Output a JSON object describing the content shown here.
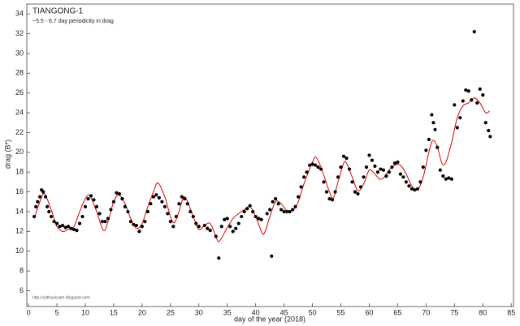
{
  "chart_data": {
    "type": "scatter",
    "title": "TIANGONG-1",
    "subtitle": "~5.5 - 6.7 day periodicity in drag",
    "note": "http://sattrackcam.blogspot.com",
    "xlabel": "day of the year (2018)",
    "ylabel": "drag (B*)",
    "xlim": [
      -0.3,
      85.4
    ],
    "ylim": [
      4.4,
      35
    ],
    "xticks": [
      0,
      5,
      10,
      15,
      20,
      25,
      30,
      35,
      40,
      45,
      50,
      55,
      60,
      65,
      70,
      75,
      80,
      85
    ],
    "yticks": [
      6,
      8,
      10,
      12,
      14,
      16,
      18,
      20,
      22,
      24,
      26,
      28,
      30,
      32,
      34
    ],
    "series": [
      {
        "color": "#000000",
        "x": [
          1,
          1.3,
          1.6,
          2,
          2.3,
          2.6,
          3,
          3.3,
          3.6,
          4,
          4.5,
          5,
          5.5,
          6,
          6.5,
          7,
          7.5,
          8,
          8.5,
          9,
          9.5,
          10,
          10.5,
          11,
          11.5,
          12,
          12.5,
          13,
          13.5,
          14,
          14.5,
          15,
          15.5,
          16,
          16.5,
          17,
          17.5,
          18,
          18.5,
          19,
          19.5,
          20,
          20.5,
          21,
          21.5,
          22,
          22.5,
          23,
          23.5,
          24,
          24.5,
          25,
          25.5,
          26,
          26.5,
          27,
          27.5,
          28,
          28.5,
          29,
          29.5,
          30,
          31,
          31.5,
          32,
          33,
          33.5,
          34,
          34.5,
          35,
          35.5,
          36,
          36.5,
          37,
          37.5,
          38,
          38.5,
          39,
          39.5,
          40,
          40.5,
          41,
          42,
          42.5,
          42.8,
          43,
          43.5,
          44,
          44.5,
          45,
          45.5,
          46,
          46.5,
          47,
          47.5,
          48,
          48.5,
          49,
          49.5,
          50,
          50.5,
          51,
          51.5,
          52,
          52.5,
          53,
          53.5,
          54,
          54.5,
          55,
          55.5,
          56,
          56.5,
          57,
          57.5,
          58,
          58.5,
          59,
          59.5,
          60,
          60.5,
          61,
          61.5,
          62,
          62.5,
          63,
          63.5,
          64,
          64.5,
          65,
          65.5,
          66,
          66.5,
          67,
          67.5,
          68,
          68.5,
          69,
          69.5,
          70,
          70.5,
          71,
          71.3,
          71.6,
          72,
          72.5,
          73,
          73.5,
          74,
          74.5,
          75,
          75.5,
          76,
          76.5,
          77,
          77.5,
          78,
          78.5,
          79,
          79.5,
          80,
          80.5,
          81,
          81.3
        ],
        "values": [
          13.5,
          14.5,
          15,
          15.5,
          16.2,
          16,
          15.5,
          14.5,
          14,
          13.5,
          13,
          12.8,
          12.5,
          12.6,
          12.4,
          12.5,
          12.3,
          12.2,
          12.1,
          12.8,
          13.5,
          14.5,
          15.3,
          15.6,
          15.2,
          14.5,
          13.8,
          13,
          13,
          13.3,
          14.2,
          15,
          15.9,
          15.8,
          15.3,
          14.5,
          14,
          13,
          12.7,
          12.6,
          12,
          12.5,
          13,
          14,
          14.8,
          15.5,
          15.7,
          15.4,
          15,
          14.5,
          13.8,
          13,
          12.5,
          13.5,
          14.8,
          15.5,
          15.3,
          14.8,
          14,
          13.5,
          12.8,
          12.5,
          12.6,
          12.3,
          12.1,
          11.5,
          9.3,
          12.5,
          13.2,
          13.3,
          12.5,
          12,
          12.3,
          12.8,
          13.5,
          14,
          14.3,
          14.6,
          14,
          13.5,
          13.3,
          13.2,
          13.8,
          14.2,
          9.5,
          15,
          15.3,
          14.8,
          14.2,
          14,
          14,
          14,
          14.2,
          14.5,
          15.5,
          16.5,
          17.5,
          18,
          18.7,
          18.8,
          18.7,
          18.5,
          18.3,
          17,
          16,
          15.3,
          15.2,
          16,
          17.5,
          18.5,
          19.6,
          19.4,
          18.3,
          17,
          16,
          15.8,
          16.5,
          17.5,
          18.5,
          19.7,
          19.2,
          18.6,
          18,
          18.3,
          18.2,
          17.6,
          18,
          18.5,
          18.9,
          19,
          17.8,
          17.5,
          17,
          16.6,
          16.3,
          16.2,
          16.3,
          17,
          18.5,
          20.2,
          21.3,
          23.8,
          23,
          22.3,
          20.5,
          18.2,
          17.6,
          17.3,
          17.4,
          17.3,
          24.8,
          22.5,
          23.5,
          25.2,
          26.3,
          26.2,
          25.3,
          32.2,
          25,
          26.4,
          25.8,
          23,
          22.2,
          21.6
        ]
      },
      {
        "color": "#e00000",
        "x": [
          1,
          2,
          2.8,
          4,
          5,
          6,
          7,
          8,
          9,
          10,
          10.8,
          12,
          13.2,
          14,
          15,
          15.9,
          17,
          18,
          19,
          20,
          21,
          22,
          22.8,
          24,
          25,
          25.7,
          26.5,
          27.5,
          29,
          30,
          31,
          32,
          33,
          33.6,
          35,
          36,
          37,
          38,
          39,
          40,
          41,
          41.5,
          42.5,
          43.5,
          44.5,
          45.5,
          46.5,
          47.5,
          48.5,
          50,
          50.6,
          51.5,
          53,
          53.7,
          54.5,
          55.5,
          56,
          57,
          58,
          59,
          60,
          61,
          61.8,
          62.5,
          63.5,
          64.5,
          65.5,
          66.5,
          67.5,
          68.5,
          69.5,
          70.5,
          71.2,
          72,
          72.8,
          73.5,
          74.5,
          75.5,
          76.5,
          77.5,
          78.5,
          79.5,
          80.5,
          81.2
        ],
        "values": [
          13.3,
          15,
          15.8,
          14.2,
          12.5,
          12,
          12.2,
          12.5,
          14,
          15.3,
          15.6,
          14,
          12.1,
          13,
          15,
          15.7,
          14.8,
          13.3,
          12.3,
          12.8,
          14.5,
          16,
          16.9,
          15.5,
          13.5,
          12.9,
          14,
          15.5,
          13.5,
          12.2,
          12.6,
          12.8,
          11.5,
          11,
          12.4,
          13.3,
          13.8,
          14.2,
          14.5,
          13.5,
          12,
          11.8,
          13.5,
          15,
          14.8,
          14.1,
          14.1,
          15,
          16.8,
          19,
          19.5,
          18.5,
          16,
          15.4,
          17,
          18.9,
          18.9,
          17.5,
          16.1,
          16.8,
          18.2,
          17.8,
          17.3,
          17.4,
          18.2,
          18.7,
          18.7,
          17.8,
          16.6,
          16.2,
          17.5,
          20,
          21.2,
          20.5,
          18.9,
          19,
          21,
          23.5,
          24.7,
          25,
          25.5,
          25,
          24,
          24.2
        ]
      }
    ]
  }
}
